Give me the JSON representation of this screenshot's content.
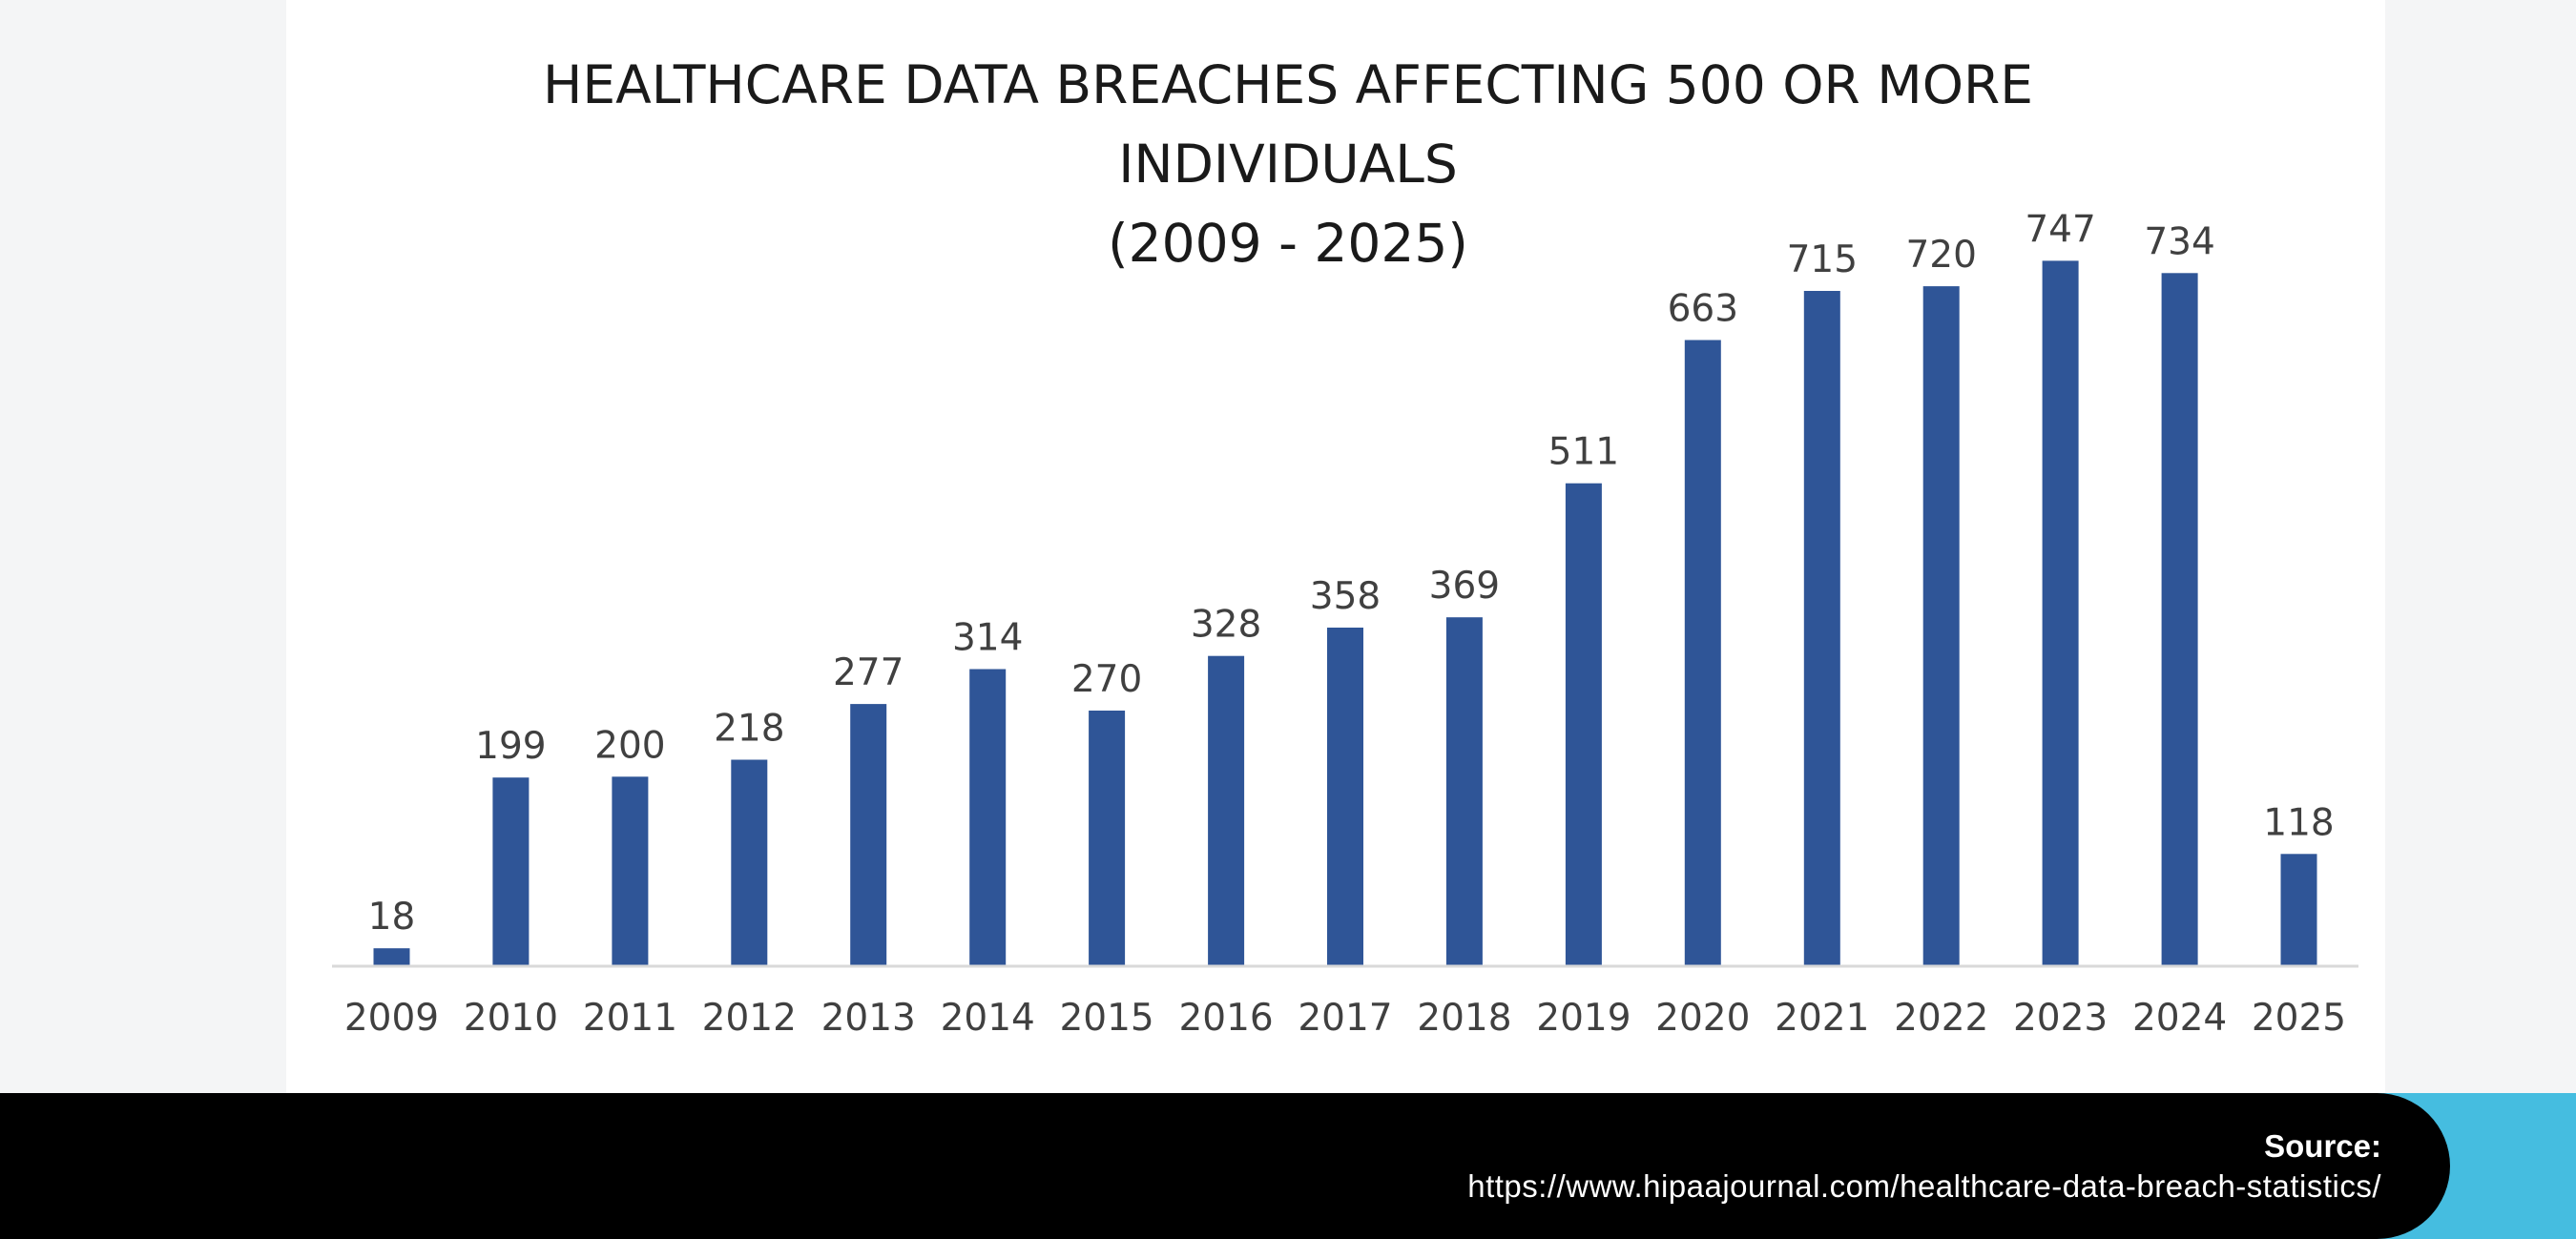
{
  "chart_data": {
    "type": "bar",
    "title_lines": [
      "HEALTHCARE DATA BREACHES AFFECTING 500 OR MORE",
      "INDIVIDUALS",
      "(2009 - 2025)"
    ],
    "categories": [
      "2009",
      "2010",
      "2011",
      "2012",
      "2013",
      "2014",
      "2015",
      "2016",
      "2017",
      "2018",
      "2019",
      "2020",
      "2021",
      "2022",
      "2023",
      "2024",
      "2025"
    ],
    "values": [
      18,
      199,
      200,
      218,
      277,
      314,
      270,
      328,
      358,
      369,
      511,
      663,
      715,
      720,
      747,
      734,
      118
    ],
    "data_labels": [
      "18",
      "199",
      "200",
      "218",
      "277",
      "314",
      "270",
      "328",
      "358",
      "369",
      "511",
      "663",
      "715",
      "720",
      "747",
      "734",
      "118"
    ],
    "xlabel": "",
    "ylabel": "",
    "ylim": [
      0,
      800
    ],
    "grid": false,
    "bar_color": "#2f5597",
    "axis_color": "#d9d9d9"
  },
  "footer": {
    "source_label": "Source:",
    "source_url": "https://www.hipaajournal.com/healthcare-data-breach-statistics/"
  }
}
